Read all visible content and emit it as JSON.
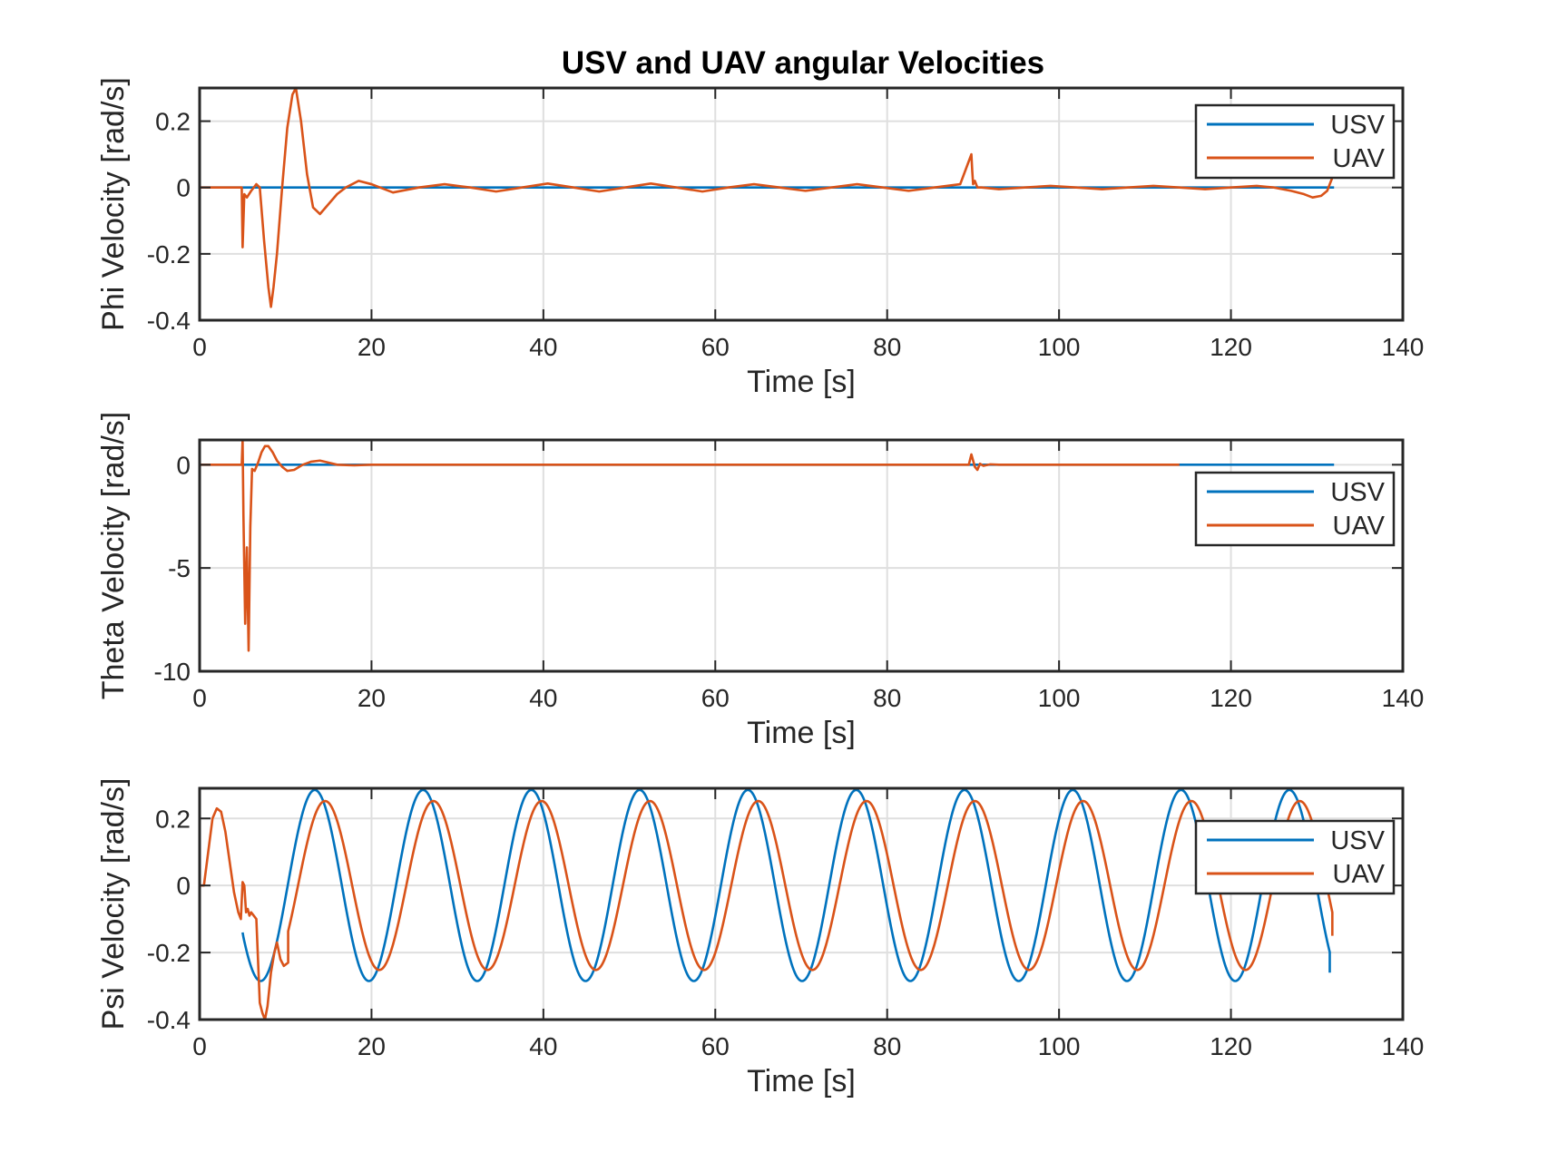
{
  "figure": {
    "title": "USV and UAV angular Velocities"
  },
  "colors": {
    "USV": "#0072BD",
    "UAV": "#D95319"
  },
  "chart_data": [
    {
      "type": "line",
      "title": "USV and UAV angular Velocities",
      "xlabel": "Time [s]",
      "ylabel": "Phi Velocity [rad/s]",
      "xlim": [
        0,
        140
      ],
      "ylim": [
        -0.4,
        0.3
      ],
      "xticks": [
        0,
        20,
        40,
        60,
        80,
        100,
        120,
        140
      ],
      "yticks": [
        -0.4,
        -0.2,
        0,
        0.2
      ],
      "ytick_labels": [
        "-0.4",
        "-0.2",
        "0",
        "0.2"
      ],
      "grid": true,
      "legend": "top-right",
      "series": [
        {
          "name": "USV",
          "x": [
            0,
            20,
            40,
            60,
            80,
            100,
            120,
            132
          ],
          "y": [
            0,
            0,
            0,
            0,
            0,
            0,
            0,
            0
          ]
        },
        {
          "name": "UAV",
          "x": [
            0,
            4.9,
            5.0,
            5.2,
            5.5,
            6.0,
            6.6,
            7.0,
            7.5,
            8.0,
            8.3,
            8.6,
            9.0,
            9.6,
            10.2,
            10.8,
            11.2,
            11.8,
            12.5,
            13.2,
            14.0,
            15.0,
            16.0,
            17.0,
            18.5,
            20,
            22.5,
            25.5,
            28.5,
            31.5,
            34.5,
            37.5,
            40.5,
            43.5,
            46.5,
            49.5,
            52.5,
            55.5,
            58.5,
            61.5,
            64.5,
            67.5,
            70.5,
            73.5,
            76.5,
            79.5,
            82.5,
            85.5,
            88.5,
            89.8,
            89.9,
            90.0,
            90.2,
            90.5,
            91,
            93,
            96,
            99,
            102,
            105,
            108,
            111,
            114,
            117,
            120,
            123,
            125,
            127,
            128.5,
            129.5,
            130.5,
            131.2,
            131.8
          ],
          "y": [
            0,
            0,
            -0.18,
            -0.02,
            -0.03,
            -0.01,
            0.01,
            0.0,
            -0.16,
            -0.3,
            -0.36,
            -0.3,
            -0.2,
            0.0,
            0.18,
            0.28,
            0.3,
            0.2,
            0.04,
            -0.06,
            -0.08,
            -0.05,
            -0.02,
            0.0,
            0.02,
            0.01,
            -0.015,
            0.0,
            0.01,
            0.0,
            -0.012,
            0.0,
            0.012,
            0.0,
            -0.012,
            0.0,
            0.012,
            0.0,
            -0.012,
            0.0,
            0.01,
            0.0,
            -0.01,
            0.0,
            0.01,
            0.0,
            -0.01,
            0.0,
            0.01,
            0.1,
            0.05,
            0.01,
            0.02,
            0.0,
            0.0,
            -0.005,
            0.0,
            0.005,
            0.0,
            -0.005,
            0.0,
            0.005,
            0.0,
            -0.005,
            0.0,
            0.005,
            0.0,
            -0.01,
            -0.02,
            -0.03,
            -0.025,
            -0.01,
            0.03
          ]
        }
      ]
    },
    {
      "type": "line",
      "xlabel": "Time [s]",
      "ylabel": "Theta Velocity [rad/s]",
      "xlim": [
        0,
        140
      ],
      "ylim": [
        -10,
        1.2
      ],
      "xticks": [
        0,
        20,
        40,
        60,
        80,
        100,
        120,
        140
      ],
      "yticks": [
        -10,
        -5,
        0
      ],
      "ytick_labels": [
        "-10",
        "-5",
        "0"
      ],
      "grid": true,
      "legend": "right",
      "series": [
        {
          "name": "USV",
          "x": [
            0,
            20,
            40,
            60,
            80,
            100,
            120,
            132
          ],
          "y": [
            0,
            0,
            0,
            0,
            0,
            0,
            0,
            0
          ]
        },
        {
          "name": "UAV",
          "x": [
            0,
            4.9,
            5.0,
            5.1,
            5.3,
            5.5,
            5.7,
            5.9,
            6.1,
            6.4,
            6.8,
            7.2,
            7.6,
            8.0,
            8.5,
            9.0,
            9.6,
            10.2,
            11,
            12,
            13,
            14,
            15,
            16,
            18,
            20,
            30,
            40,
            50,
            60,
            70,
            80,
            89.5,
            89.8,
            90.0,
            90.2,
            90.5,
            90.8,
            91.2,
            92,
            93,
            95,
            100,
            110,
            114
          ],
          "y": [
            0,
            0,
            1.2,
            -2.5,
            -7.7,
            -4.0,
            -9.0,
            -3.0,
            -0.2,
            -0.3,
            0.1,
            0.6,
            0.9,
            0.9,
            0.6,
            0.2,
            -0.1,
            -0.3,
            -0.25,
            0.0,
            0.15,
            0.2,
            0.1,
            0.0,
            -0.03,
            0.0,
            0.0,
            0.0,
            0.0,
            0.0,
            0.0,
            0.0,
            0.0,
            0.5,
            0.2,
            -0.1,
            -0.25,
            0.05,
            -0.05,
            0.02,
            0.0,
            0.0,
            0.0,
            0.0,
            0.0
          ]
        }
      ]
    },
    {
      "type": "line",
      "xlabel": "Time [s]",
      "ylabel": "Psi Velocity [rad/s]",
      "xlim": [
        0,
        140
      ],
      "ylim": [
        -0.4,
        0.29
      ],
      "xticks": [
        0,
        20,
        40,
        60,
        80,
        100,
        120,
        140
      ],
      "yticks": [
        -0.4,
        -0.2,
        0,
        0.2
      ],
      "ytick_labels": [
        "-0.4",
        "-0.2",
        "0",
        "0.2"
      ],
      "grid": true,
      "legend": "right",
      "series": [
        {
          "name": "USV",
          "waveform": "sine",
          "x_start": 5,
          "x_end": 131.5,
          "amplitude": 0.285,
          "period_s": 12.6,
          "peak_at_s": 13.4,
          "y_at_start": -0.14,
          "y_at_end": -0.26
        },
        {
          "name": "UAV",
          "initial_x": [
            0,
            0.5,
            1.0,
            1.5,
            2.0,
            2.5,
            3.0,
            3.5,
            4.0,
            4.5,
            4.8,
            5.0,
            5.2,
            5.4,
            5.6,
            5.8,
            6.0,
            6.3,
            6.6,
            7.0,
            7.3,
            7.6,
            7.9,
            8.3,
            8.7,
            9.0,
            9.4,
            9.8,
            10.3
          ],
          "initial_y": [
            0,
            0.0,
            0.1,
            0.2,
            0.23,
            0.22,
            0.16,
            0.07,
            -0.02,
            -0.08,
            -0.1,
            0.01,
            0.0,
            -0.08,
            -0.07,
            -0.09,
            -0.08,
            -0.09,
            -0.1,
            -0.35,
            -0.38,
            -0.4,
            -0.36,
            -0.26,
            -0.2,
            -0.17,
            -0.22,
            -0.24,
            -0.23
          ],
          "waveform": "sine",
          "x_start": 10.3,
          "x_end": 131.8,
          "amplitude": 0.252,
          "period_s": 12.6,
          "peak_at_s": 14.6,
          "y_at_end": -0.15
        }
      ]
    }
  ]
}
